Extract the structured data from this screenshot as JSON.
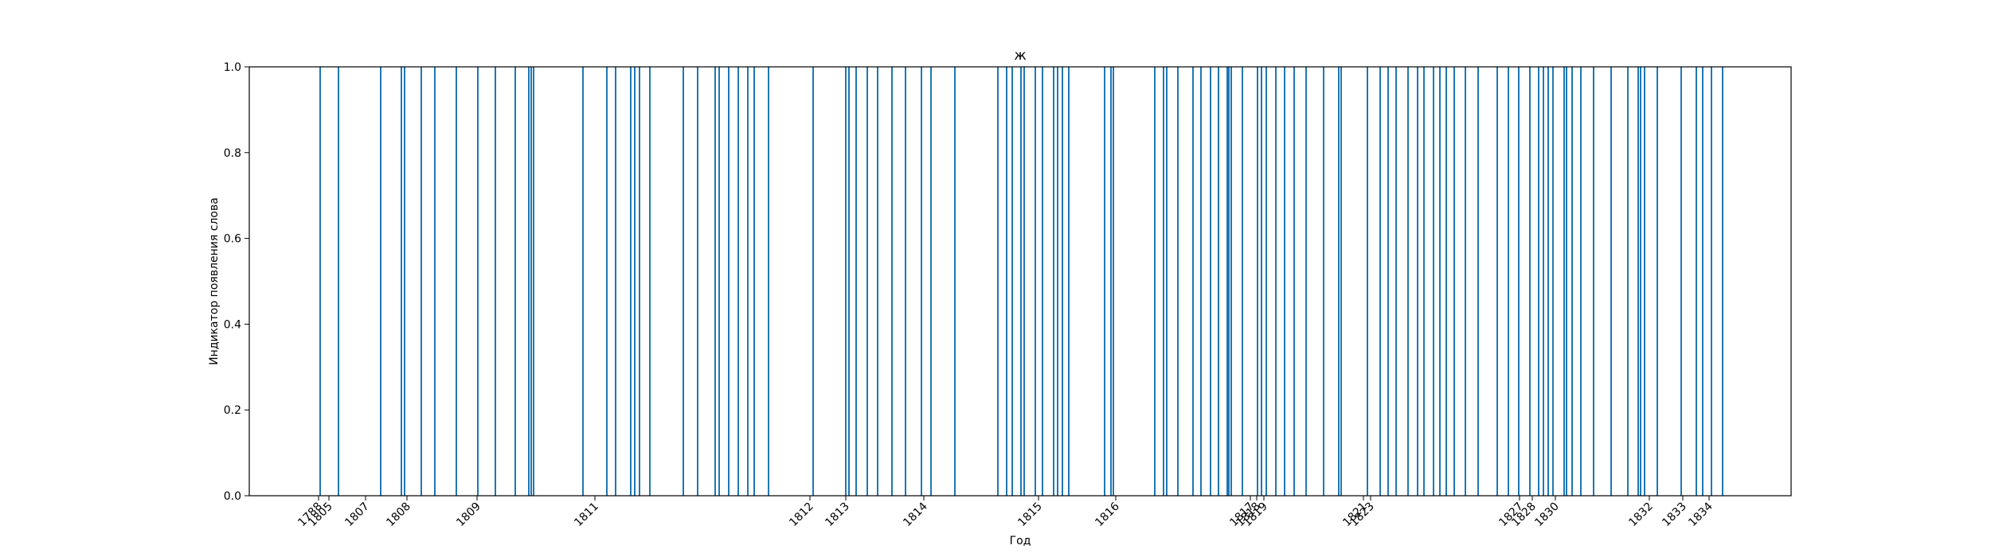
{
  "chart_data": {
    "type": "bar",
    "title": "ж",
    "xlabel": "Год",
    "ylabel": "Индикатор появления слова",
    "ylim": [
      0,
      1
    ],
    "y_ticks": [
      "0.0",
      "0.2",
      "0.4",
      "0.6",
      "0.8",
      "1.0"
    ],
    "x_tick_labels": [
      "1788",
      "1805",
      "1807",
      "1808",
      "1809",
      "1811",
      "1812",
      "1813",
      "1814",
      "1815",
      "1816",
      "1817",
      "1818",
      "1819",
      "1821",
      "1823",
      "1827",
      "1828",
      "1830",
      "1832",
      "1833",
      "1834"
    ],
    "x_tick_positions": [
      1788,
      1805,
      1807,
      1808,
      1809,
      1811,
      1812,
      1813,
      1814,
      1815,
      1816,
      1817,
      1818,
      1819,
      1821,
      1823,
      1827,
      1828,
      1830,
      1832,
      1833,
      1834
    ],
    "bar_color": "#1f77b4",
    "grid": false,
    "series": [
      {
        "values": [
          1,
          1,
          1,
          1,
          1,
          1,
          1,
          1,
          1,
          1,
          1,
          1,
          1,
          1,
          1,
          1,
          1,
          1,
          1,
          1,
          1,
          1,
          1,
          1,
          1,
          1,
          1,
          1,
          1,
          1,
          1,
          1,
          1,
          1,
          1,
          1,
          1,
          1,
          1,
          1,
          1,
          1,
          1,
          1,
          1,
          1,
          1,
          1,
          1,
          1,
          1,
          1,
          1,
          1,
          1,
          1,
          1,
          1,
          1,
          1,
          1,
          1,
          1,
          1,
          1,
          1,
          1,
          1,
          1,
          1,
          1,
          1,
          1,
          1,
          1,
          1,
          1,
          1,
          1,
          1,
          1,
          1,
          1,
          1,
          1,
          1,
          1,
          1,
          1,
          1,
          1,
          1,
          1,
          1,
          1,
          1,
          1,
          1,
          1,
          1,
          1,
          1,
          1,
          1,
          1,
          1,
          1,
          1,
          1,
          1,
          1,
          1,
          1,
          1,
          1,
          1,
          1,
          1,
          1,
          1,
          1,
          1,
          1,
          1,
          1,
          1,
          1,
          1,
          1,
          1,
          1,
          1,
          1,
          1,
          1,
          1,
          1,
          1,
          1,
          1,
          1,
          1,
          1,
          1,
          1,
          1
        ]
      }
    ]
  }
}
